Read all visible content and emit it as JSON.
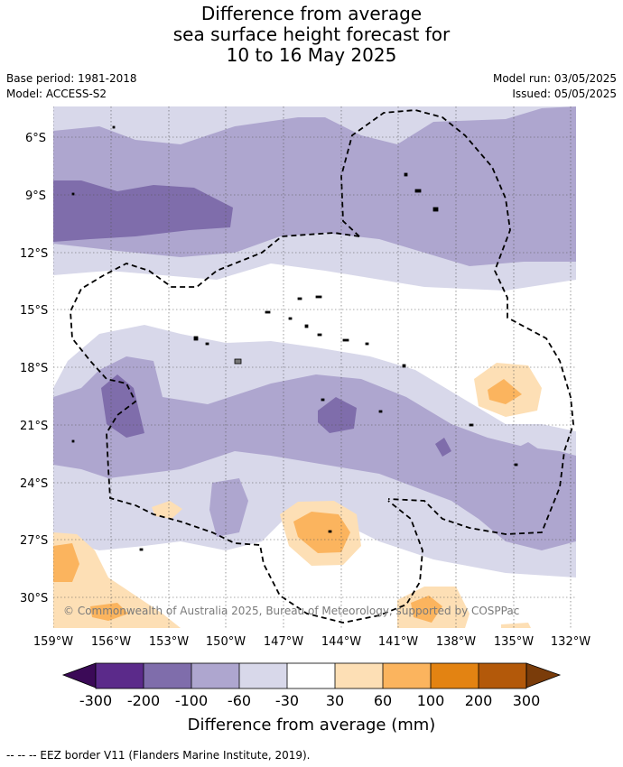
{
  "title": {
    "line1": "Difference from average",
    "line2": "sea surface height forecast for",
    "line3": "10 to 16 May 2025"
  },
  "meta_left": {
    "base_period": "Base period: 1981-2018",
    "model": "Model: ACCESS-S2"
  },
  "meta_right": {
    "model_run": "Model run: 03/05/2025",
    "issued": "Issued: 05/05/2025"
  },
  "map": {
    "lat_labels": [
      "6°S",
      "9°S",
      "12°S",
      "15°S",
      "18°S",
      "21°S",
      "24°S",
      "27°S",
      "30°S"
    ],
    "lon_labels": [
      "159°W",
      "156°W",
      "153°W",
      "150°W",
      "147°W",
      "144°W",
      "141°W",
      "138°W",
      "135°W",
      "132°W"
    ],
    "copyright": "© Commonwealth of Australia 2025, Bureau of Meteorology, supported by COSPPac",
    "colors": {
      "p300": "#3b0a57",
      "p200": "#5b2a8a",
      "p100": "#7f6dab",
      "p60": "#aea6cf",
      "p30": "#d8d8ea",
      "zero": "#ffffff",
      "o30": "#fddfb5",
      "o60": "#fbb45e",
      "o100": "#e38312",
      "o200": "#b3590a",
      "o300": "#7a3c0a"
    }
  },
  "colorbar": {
    "ticks": [
      "-300",
      "-200",
      "-100",
      "-60",
      "-30",
      "30",
      "60",
      "100",
      "200",
      "300"
    ],
    "title": "Difference from average (mm)"
  },
  "footer": "--  --  -- EEZ border V11 (Flanders Marine Institute, 2019)."
}
